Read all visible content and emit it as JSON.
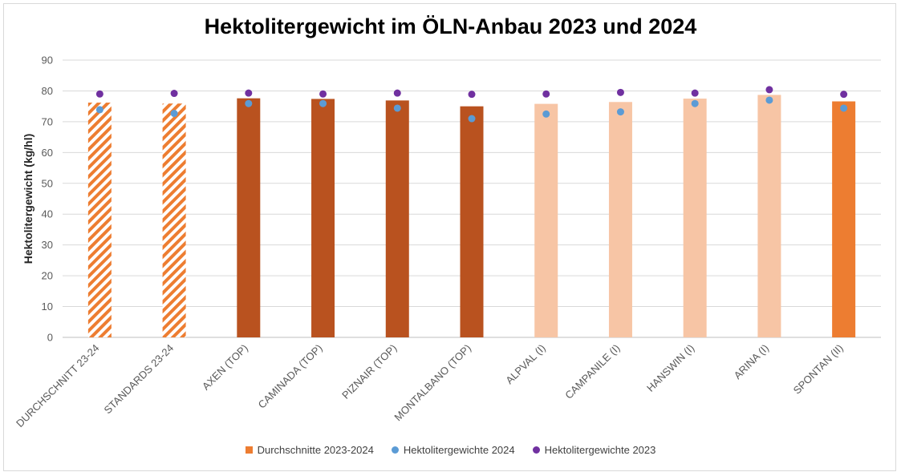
{
  "chart_data": {
    "type": "bar",
    "title": "Hektolitergewicht im ÖLN-Anbau 2023 und 2024",
    "ylabel": "Hektolitergewicht (kg/hl)",
    "xlabel": "",
    "ylim": [
      0,
      90
    ],
    "yticks": [
      0,
      10,
      20,
      30,
      40,
      50,
      60,
      70,
      80,
      90
    ],
    "grid": true,
    "legend_position": "bottom",
    "categories": [
      "DURCHSCHNITT 23-24",
      "STANDARDS 23-24",
      "AXEN (TOP)",
      "CAMINADA (TOP)",
      "PIZNAIR  (TOP)",
      "MONTALBANO (TOP)",
      "ALPVAL (I)",
      "CAMPANILE (I)",
      "HANSWIN (I)",
      "ARINA (I)",
      "SPONTAN (II)"
    ],
    "bar_colors": [
      "#ed7d31",
      "#ed7d31",
      "#b9521f",
      "#b9521f",
      "#b9521f",
      "#b9521f",
      "#f7c5a5",
      "#f7c5a5",
      "#f7c5a5",
      "#f7c5a5",
      "#ed7d31"
    ],
    "bar_hatched": [
      true,
      true,
      false,
      false,
      false,
      false,
      false,
      false,
      false,
      false,
      false
    ],
    "series": [
      {
        "name": "Durchschnitte 2023-2024",
        "kind": "bar",
        "color": "#ed7d31",
        "values": [
          76.2,
          75.9,
          77.6,
          77.4,
          76.9,
          75.0,
          75.8,
          76.4,
          77.5,
          78.7,
          76.6
        ]
      },
      {
        "name": "Hektolitergewichte 2024",
        "kind": "scatter",
        "color": "#5b9bd5",
        "values": [
          73.9,
          72.7,
          75.9,
          75.9,
          74.4,
          71.0,
          72.5,
          73.2,
          75.9,
          77.0,
          74.4
        ]
      },
      {
        "name": "Hektolitergewichte 2023",
        "kind": "scatter",
        "color": "#7030a0",
        "values": [
          79.0,
          79.2,
          79.3,
          79.0,
          79.3,
          78.9,
          79.0,
          79.5,
          79.3,
          80.4,
          78.9
        ]
      }
    ]
  }
}
